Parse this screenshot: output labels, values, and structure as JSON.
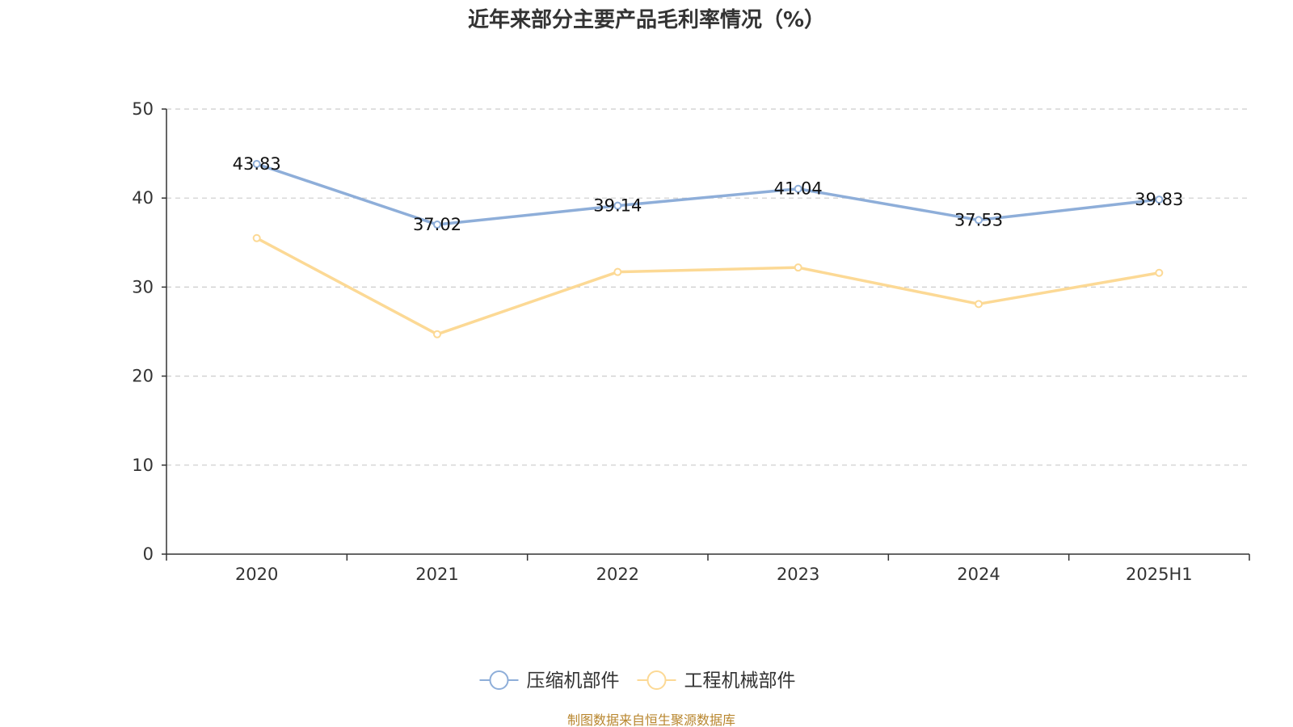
{
  "chart_data": {
    "type": "line",
    "title": "近年来部分主要产品毛利率情况（%）",
    "categories": [
      "2020",
      "2021",
      "2022",
      "2023",
      "2024",
      "2025H1"
    ],
    "ylim": [
      0,
      50
    ],
    "yticks": [
      0,
      10,
      20,
      30,
      40,
      50
    ],
    "grid": true,
    "legend": "bottom-center",
    "series": [
      {
        "name": "压缩机部件",
        "color": "#8eaed9",
        "values": [
          43.83,
          37.02,
          39.14,
          41.04,
          37.53,
          39.83
        ],
        "labels": [
          "43.83",
          "37.02",
          "39.14",
          "41.04",
          "37.53",
          "39.83"
        ],
        "show_labels": true
      },
      {
        "name": "工程机械部件",
        "color": "#fcd995",
        "values": [
          35.5,
          24.7,
          31.7,
          32.2,
          28.1,
          31.6
        ],
        "show_labels": false
      }
    ],
    "source": "制图数据来自恒生聚源数据库"
  }
}
